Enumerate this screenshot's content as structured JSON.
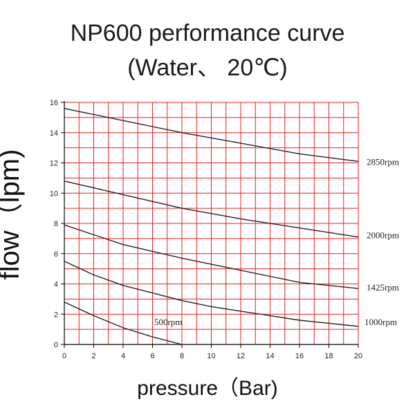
{
  "title_line1": "NP600 performance curve",
  "title_line2": "(Water、 20℃)",
  "chart_data": {
    "type": "line",
    "title": "NP600 performance curve (Water、 20℃)",
    "xlabel": "pressure（Bar)",
    "ylabel": "flow（lpm)",
    "xlim": [
      0,
      20
    ],
    "ylim": [
      0,
      16
    ],
    "xticks": [
      0,
      2,
      4,
      6,
      8,
      10,
      12,
      14,
      16,
      18,
      20
    ],
    "yticks": [
      0,
      2,
      4,
      6,
      8,
      10,
      12,
      14,
      16
    ],
    "grid": true,
    "grid_color": "#e02020",
    "line_color": "#222222",
    "series": [
      {
        "name": "2850rpm",
        "x": [
          0,
          4,
          8,
          12,
          16,
          20
        ],
        "y": [
          15.6,
          14.8,
          14.0,
          13.3,
          12.6,
          12.1
        ]
      },
      {
        "name": "2000rpm",
        "x": [
          0,
          4,
          8,
          12,
          16,
          20
        ],
        "y": [
          10.8,
          9.9,
          9.0,
          8.3,
          7.7,
          7.1
        ]
      },
      {
        "name": "1425rpm",
        "x": [
          0,
          4,
          8,
          12,
          16,
          20
        ],
        "y": [
          7.9,
          6.6,
          5.7,
          4.9,
          4.1,
          3.7
        ]
      },
      {
        "name": "1000rpm",
        "x": [
          0,
          2,
          4,
          6,
          8,
          10,
          12,
          14,
          16,
          18,
          20
        ],
        "y": [
          5.5,
          4.6,
          3.9,
          3.4,
          2.9,
          2.5,
          2.2,
          1.9,
          1.6,
          1.4,
          1.2
        ]
      },
      {
        "name": "500rpm",
        "x": [
          0,
          2,
          4,
          6,
          8
        ],
        "y": [
          2.8,
          1.9,
          1.1,
          0.5,
          0.0
        ]
      }
    ]
  }
}
